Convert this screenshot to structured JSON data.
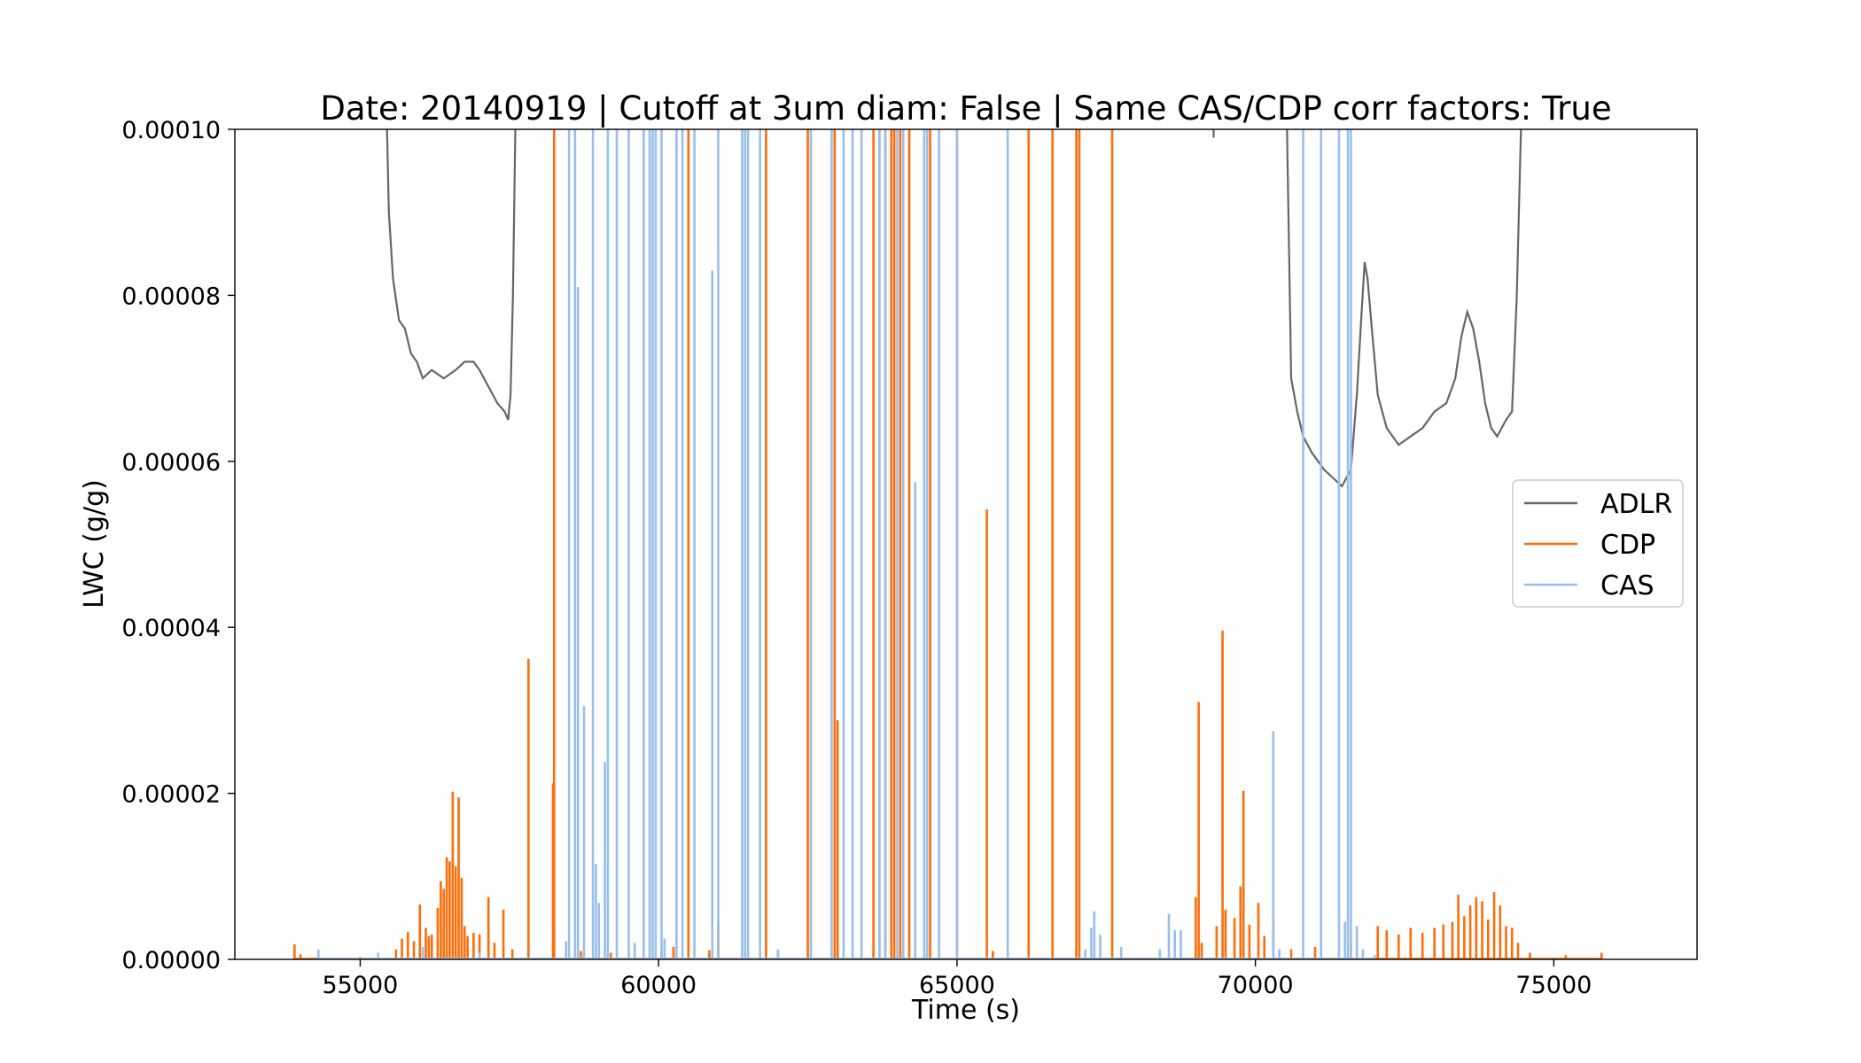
{
  "chart_data": {
    "type": "line",
    "title": "Date: 20140919 | Cutoff at 3um diam: False | Same CAS/CDP corr factors: True",
    "xlabel": "Time (s)",
    "ylabel": "LWC (g/g)",
    "xlim": [
      52900,
      77400
    ],
    "ylim": [
      0,
      0.0001
    ],
    "xticks": [
      55000,
      60000,
      65000,
      70000,
      75000
    ],
    "xtick_labels": [
      "55000",
      "60000",
      "65000",
      "70000",
      "75000"
    ],
    "yticks": [
      0,
      2e-05,
      4e-05,
      6e-05,
      8e-05,
      0.0001
    ],
    "ytick_labels": [
      "0.00000",
      "0.00002",
      "0.00004",
      "0.00006",
      "0.00008",
      "0.00010"
    ],
    "grid": false,
    "legend_position": "center-right",
    "series": [
      {
        "name": "ADLR",
        "color": "#666666",
        "style": "line",
        "segments": [
          [
            [
              55400,
              0.00012
            ],
            [
              55450,
              0.0001
            ],
            [
              55480,
              9e-05
            ],
            [
              55550,
              8.2e-05
            ],
            [
              55650,
              7.7e-05
            ],
            [
              55750,
              7.6e-05
            ],
            [
              55850,
              7.3e-05
            ],
            [
              55950,
              7.2e-05
            ],
            [
              56050,
              7e-05
            ],
            [
              56200,
              7.1e-05
            ],
            [
              56400,
              7e-05
            ],
            [
              56600,
              7.1e-05
            ],
            [
              56750,
              7.2e-05
            ],
            [
              56900,
              7.2e-05
            ],
            [
              57000,
              7.1e-05
            ],
            [
              57150,
              6.9e-05
            ],
            [
              57300,
              6.7e-05
            ],
            [
              57420,
              6.6e-05
            ],
            [
              57480,
              6.5e-05
            ],
            [
              57520,
              6.8e-05
            ],
            [
              57560,
              8e-05
            ],
            [
              57600,
              0.0001
            ],
            [
              57650,
              0.00013
            ]
          ],
          [
            [
              70450,
              0.00012
            ],
            [
              70530,
              0.0001
            ],
            [
              70600,
              7e-05
            ],
            [
              70700,
              6.6e-05
            ],
            [
              70800,
              6.3e-05
            ],
            [
              70950,
              6.1e-05
            ],
            [
              71150,
              5.9e-05
            ],
            [
              71300,
              5.8e-05
            ],
            [
              71450,
              5.7e-05
            ],
            [
              71600,
              5.9e-05
            ],
            [
              71700,
              6.8e-05
            ],
            [
              71780,
              7.8e-05
            ],
            [
              71830,
              8.4e-05
            ],
            [
              71880,
              8.2e-05
            ],
            [
              71950,
              7.6e-05
            ],
            [
              72050,
              6.8e-05
            ],
            [
              72200,
              6.4e-05
            ],
            [
              72400,
              6.2e-05
            ],
            [
              72600,
              6.3e-05
            ],
            [
              72800,
              6.4e-05
            ],
            [
              73000,
              6.6e-05
            ],
            [
              73200,
              6.7e-05
            ],
            [
              73350,
              7e-05
            ],
            [
              73450,
              7.5e-05
            ],
            [
              73550,
              7.8e-05
            ],
            [
              73650,
              7.6e-05
            ],
            [
              73750,
              7.2e-05
            ],
            [
              73850,
              6.7e-05
            ],
            [
              73950,
              6.4e-05
            ],
            [
              74050,
              6.3e-05
            ],
            [
              74200,
              6.5e-05
            ],
            [
              74300,
              6.6e-05
            ],
            [
              74380,
              8e-05
            ],
            [
              74450,
              0.0001
            ],
            [
              74520,
              0.00013
            ]
          ]
        ],
        "marks": [
          [
            69300,
            9.9e-05
          ]
        ]
      },
      {
        "name": "CDP",
        "color": "#ff6d0a",
        "style": "spikes",
        "spikes": [
          [
            53900,
            1.8e-06
          ],
          [
            54000,
            6e-07
          ],
          [
            55000,
            3e-07
          ],
          [
            55600,
            1.2e-06
          ],
          [
            55700,
            2.5e-06
          ],
          [
            55800,
            3.3e-06
          ],
          [
            55900,
            2.2e-06
          ],
          [
            56000,
            6.6e-06
          ],
          [
            56100,
            3.8e-06
          ],
          [
            56150,
            2.8e-06
          ],
          [
            56200,
            3e-06
          ],
          [
            56300,
            6.2e-06
          ],
          [
            56350,
            9.4e-06
          ],
          [
            56400,
            8.5e-06
          ],
          [
            56450,
            1.23e-05
          ],
          [
            56500,
            1.18e-05
          ],
          [
            56550,
            2.02e-05
          ],
          [
            56600,
            1.12e-05
          ],
          [
            56650,
            1.95e-05
          ],
          [
            56700,
            9.8e-06
          ],
          [
            56750,
            4e-06
          ],
          [
            56800,
            2.8e-06
          ],
          [
            56900,
            3.2e-06
          ],
          [
            57000,
            3e-06
          ],
          [
            57150,
            7.5e-06
          ],
          [
            57250,
            2e-06
          ],
          [
            57400,
            6e-06
          ],
          [
            57550,
            1.2e-06
          ],
          [
            57820,
            3.62e-05
          ],
          [
            58230,
            2.12e-05
          ],
          [
            58250,
            0.00011
          ],
          [
            58700,
            1e-06
          ],
          [
            59200,
            8e-07
          ],
          [
            60050,
            1e-06
          ],
          [
            60250,
            1.5e-06
          ],
          [
            60500,
            0.00011
          ],
          [
            60850,
            1.1e-06
          ],
          [
            61000,
            4.5e-06
          ],
          [
            61800,
            0.00011
          ],
          [
            62000,
            1e-06
          ],
          [
            62500,
            0.00011
          ],
          [
            62550,
            0.00011
          ],
          [
            62950,
            0.00011
          ],
          [
            63000,
            2.88e-05
          ],
          [
            63600,
            0.00011
          ],
          [
            63700,
            0.00011
          ],
          [
            63800,
            0.00011
          ],
          [
            63900,
            0.00011
          ],
          [
            63950,
            0.00011
          ],
          [
            64050,
            0.00011
          ],
          [
            64200,
            0.00011
          ],
          [
            64550,
            0.00011
          ],
          [
            65000,
            0.00011
          ],
          [
            65500,
            5.42e-05
          ],
          [
            65600,
            1e-06
          ],
          [
            66200,
            0.00011
          ],
          [
            66600,
            0.00011
          ],
          [
            67000,
            0.00011
          ],
          [
            67050,
            0.00011
          ],
          [
            67600,
            0.00011
          ],
          [
            69000,
            7.5e-06
          ],
          [
            69050,
            3.1e-05
          ],
          [
            69100,
            2e-06
          ],
          [
            69350,
            4e-06
          ],
          [
            69450,
            3.96e-05
          ],
          [
            69500,
            6e-06
          ],
          [
            69650,
            5e-06
          ],
          [
            69750,
            8.8e-06
          ],
          [
            69800,
            2.03e-05
          ],
          [
            69900,
            4.2e-06
          ],
          [
            70050,
            6.8e-06
          ],
          [
            70150,
            2.8e-06
          ],
          [
            70300,
            4.8e-06
          ],
          [
            70600,
            1.2e-06
          ],
          [
            71000,
            1.5e-06
          ],
          [
            71600,
            2e-06
          ],
          [
            72050,
            4e-06
          ],
          [
            72200,
            3.5e-06
          ],
          [
            72400,
            3e-06
          ],
          [
            72600,
            3.8e-06
          ],
          [
            72800,
            3.2e-06
          ],
          [
            73000,
            3.8e-06
          ],
          [
            73150,
            4.2e-06
          ],
          [
            73300,
            4.5e-06
          ],
          [
            73400,
            7.8e-06
          ],
          [
            73500,
            5.2e-06
          ],
          [
            73600,
            6.5e-06
          ],
          [
            73700,
            7.5e-06
          ],
          [
            73800,
            7e-06
          ],
          [
            73900,
            4.8e-06
          ],
          [
            74000,
            8.1e-06
          ],
          [
            74100,
            6.5e-06
          ],
          [
            74200,
            4e-06
          ],
          [
            74300,
            3.8e-06
          ],
          [
            74400,
            2e-06
          ],
          [
            74600,
            8e-07
          ],
          [
            75200,
            5e-07
          ],
          [
            75800,
            8e-07
          ]
        ]
      },
      {
        "name": "CAS",
        "color": "#99bfe9",
        "style": "spikes",
        "spikes": [
          [
            54300,
            1.2e-06
          ],
          [
            55300,
            8e-07
          ],
          [
            56050,
            1.5e-06
          ],
          [
            57000,
            8e-07
          ],
          [
            58450,
            2.2e-06
          ],
          [
            58500,
            0.00011
          ],
          [
            58600,
            0.00011
          ],
          [
            58650,
            8.1e-05
          ],
          [
            58750,
            3.05e-05
          ],
          [
            58900,
            0.00011
          ],
          [
            58950,
            1.15e-05
          ],
          [
            59000,
            6.8e-06
          ],
          [
            59100,
            2.38e-05
          ],
          [
            59150,
            0.00011
          ],
          [
            59300,
            0.00011
          ],
          [
            59500,
            0.00011
          ],
          [
            59600,
            2e-06
          ],
          [
            59750,
            0.00011
          ],
          [
            59850,
            0.00011
          ],
          [
            59900,
            0.00011
          ],
          [
            59950,
            0.00011
          ],
          [
            60050,
            0.00011
          ],
          [
            60100,
            2.5e-06
          ],
          [
            60300,
            0.00011
          ],
          [
            60400,
            0.00011
          ],
          [
            60600,
            0.00011
          ],
          [
            60900,
            8.3e-05
          ],
          [
            61000,
            0.00011
          ],
          [
            61400,
            0.00011
          ],
          [
            61450,
            0.00011
          ],
          [
            61500,
            0.00011
          ],
          [
            61700,
            0.00011
          ],
          [
            62000,
            1.2e-06
          ],
          [
            62550,
            0.00011
          ],
          [
            62900,
            0.00011
          ],
          [
            63100,
            0.00011
          ],
          [
            63250,
            0.00011
          ],
          [
            63400,
            0.00011
          ],
          [
            63700,
            0.00011
          ],
          [
            63800,
            0.00011
          ],
          [
            64000,
            0.00011
          ],
          [
            64100,
            0.00011
          ],
          [
            64300,
            5.75e-05
          ],
          [
            64450,
            0.00011
          ],
          [
            64500,
            0.00011
          ],
          [
            64700,
            0.00011
          ],
          [
            65000,
            0.00011
          ],
          [
            65850,
            0.00011
          ],
          [
            67150,
            1.2e-06
          ],
          [
            67250,
            3.8e-06
          ],
          [
            67300,
            5.8e-06
          ],
          [
            67400,
            3e-06
          ],
          [
            67750,
            1.5e-06
          ],
          [
            68400,
            1.2e-06
          ],
          [
            68550,
            5.5e-06
          ],
          [
            68650,
            3.5e-06
          ],
          [
            68750,
            3.5e-06
          ],
          [
            70300,
            2.75e-05
          ],
          [
            70400,
            1.2e-06
          ],
          [
            70800,
            0.00011
          ],
          [
            71100,
            0.00011
          ],
          [
            71400,
            0.00011
          ],
          [
            71500,
            4.5e-06
          ],
          [
            71550,
            0.00011
          ],
          [
            71600,
            0.00011
          ],
          [
            71700,
            4e-06
          ],
          [
            71800,
            1.2e-06
          ],
          [
            72000,
            5e-07
          ]
        ]
      }
    ]
  }
}
